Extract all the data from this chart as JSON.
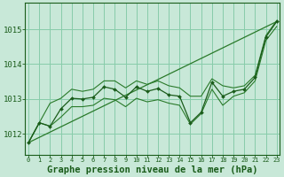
{
  "background_color": "#c8e8d8",
  "plot_bg_color": "#c8e8d8",
  "grid_color": "#88ccaa",
  "line_color_dark": "#1a5c1a",
  "line_color_mid": "#2a7a2a",
  "xlabel": "Graphe pression niveau de la mer (hPa)",
  "xlabel_fontsize": 7.5,
  "xlim": [
    -0.3,
    23.3
  ],
  "ylim": [
    1011.4,
    1015.75
  ],
  "yticks": [
    1012,
    1013,
    1014,
    1015
  ],
  "xticks": [
    0,
    1,
    2,
    3,
    4,
    5,
    6,
    7,
    8,
    9,
    10,
    11,
    12,
    13,
    14,
    15,
    16,
    17,
    18,
    19,
    20,
    21,
    22,
    23
  ],
  "hours": [
    0,
    1,
    2,
    3,
    4,
    5,
    6,
    7,
    8,
    9,
    10,
    11,
    12,
    13,
    14,
    15,
    16,
    17,
    18,
    19,
    20,
    21,
    22,
    23
  ],
  "main_series": [
    1011.75,
    1012.32,
    1012.22,
    1012.72,
    1013.02,
    1013.0,
    1013.05,
    1013.35,
    1013.28,
    1013.05,
    1013.35,
    1013.22,
    1013.3,
    1013.12,
    1013.08,
    1012.32,
    1012.62,
    1013.48,
    1013.08,
    1013.22,
    1013.28,
    1013.62,
    1014.78,
    1015.22
  ],
  "upper_series": [
    1011.75,
    1012.32,
    1012.88,
    1013.02,
    1013.28,
    1013.22,
    1013.28,
    1013.52,
    1013.52,
    1013.32,
    1013.52,
    1013.42,
    1013.52,
    1013.38,
    1013.32,
    1013.08,
    1013.08,
    1013.58,
    1013.38,
    1013.32,
    1013.38,
    1013.68,
    1014.82,
    1015.25
  ],
  "lower_series": [
    1011.75,
    1012.32,
    1012.22,
    1012.48,
    1012.78,
    1012.78,
    1012.82,
    1013.02,
    1012.98,
    1012.78,
    1013.02,
    1012.92,
    1012.98,
    1012.88,
    1012.82,
    1012.28,
    1012.58,
    1013.28,
    1012.82,
    1013.08,
    1013.18,
    1013.52,
    1014.68,
    1015.08
  ],
  "trend_x": [
    0,
    23
  ],
  "trend_y": [
    1011.75,
    1015.22
  ]
}
